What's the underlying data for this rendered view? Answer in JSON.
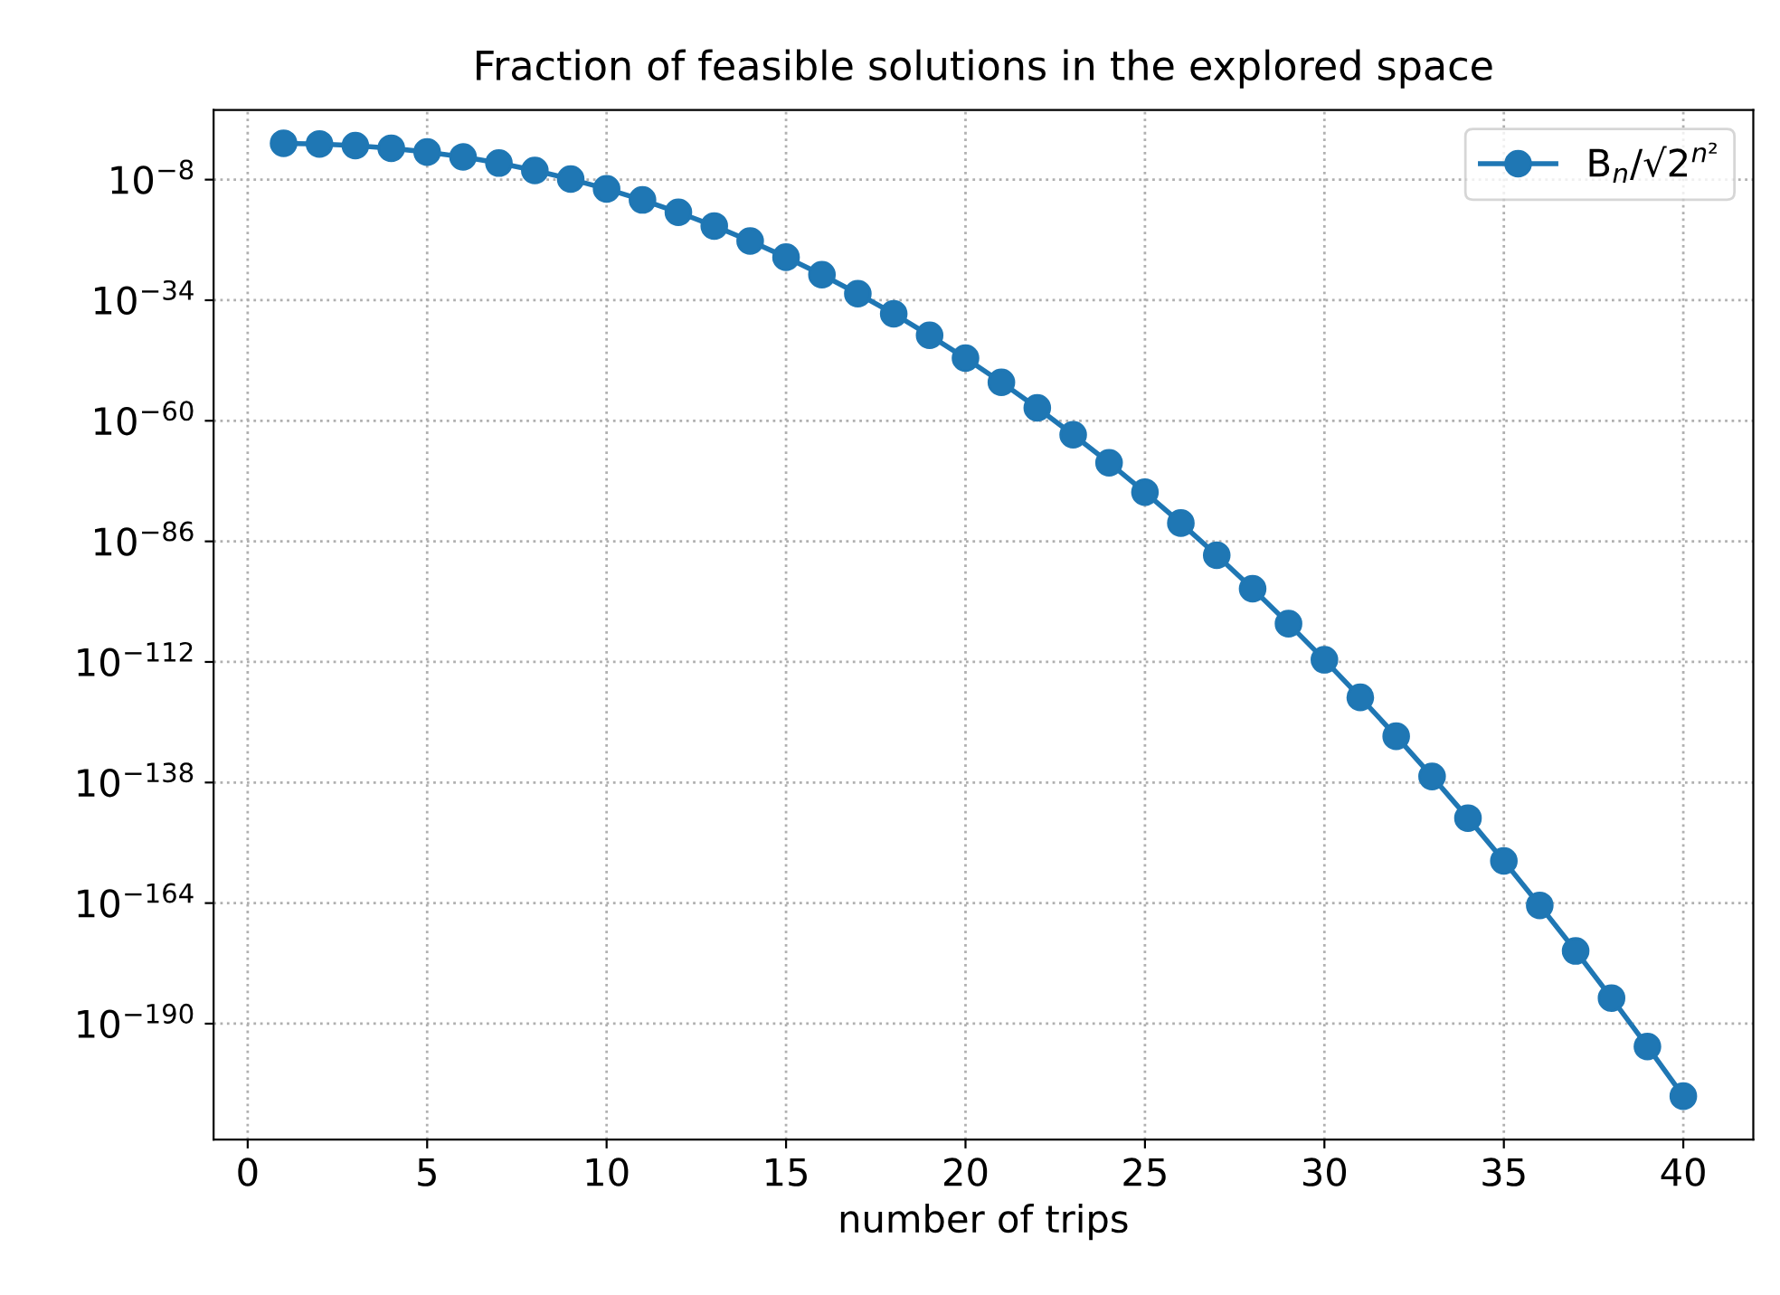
{
  "chart_data": {
    "type": "line",
    "title": "Fraction of feasible solutions in the explored space",
    "xlabel": "number of trips",
    "x": [
      1,
      2,
      3,
      4,
      5,
      6,
      7,
      8,
      9,
      10,
      11,
      12,
      13,
      14,
      15,
      16,
      17,
      18,
      19,
      20,
      21,
      22,
      23,
      24,
      25,
      26,
      27,
      28,
      29,
      30,
      31,
      32,
      33,
      34,
      35,
      36,
      37,
      38,
      39,
      40
    ],
    "series": [
      {
        "name": "B$_{n}$/√2$^{n²}$",
        "color": "#1f77b4",
        "values": [
          0.7,
          0.5,
          0.22,
          0.059,
          0.0089,
          0.00078,
          3.7e-05,
          9.5e-07,
          1.3e-08,
          1e-10,
          4.2e-13,
          8.9e-16,
          1e-18,
          6e-22,
          1.9e-25,
          3.1e-29,
          2.6e-33,
          1.2e-37,
          2.7e-42,
          3.2e-47,
          2e-52,
          6.3e-58,
          1e-63,
          8.9e-70,
          3.9e-76,
          8.9e-83,
          1e-89,
          6e-97,
          1.8e-104,
          2.9e-112,
          2.3e-120,
          9.5e-129,
          2e-137,
          2.1e-146,
          1.2e-155,
          3.2e-165,
          4.7e-175,
          3.3e-185,
          1.2e-195,
          2.3e-206
        ]
      }
    ],
    "log": "y",
    "xlim": [
      -0.95,
      41.95
    ],
    "ylim": [
      1e-215,
      10000000.0
    ],
    "xticks": [
      0,
      5,
      10,
      15,
      20,
      25,
      30,
      35,
      40
    ],
    "yticks": [
      {
        "value": 1e-08,
        "label": "10$^{−8}$"
      },
      {
        "value": 1e-34,
        "label": "10$^{−34}$"
      },
      {
        "value": 1e-60,
        "label": "10$^{−60}$"
      },
      {
        "value": 1e-86,
        "label": "10$^{−86}$"
      },
      {
        "value": 1e-112,
        "label": "10$^{−112}$"
      },
      {
        "value": 1e-138,
        "label": "10$^{−138}$"
      },
      {
        "value": 1e-164,
        "label": "10$^{−164}$"
      },
      {
        "value": 1e-190,
        "label": "10$^{−190}$"
      }
    ],
    "grid": true,
    "legend": "top right",
    "marker": "circle",
    "line_style": "solid"
  }
}
